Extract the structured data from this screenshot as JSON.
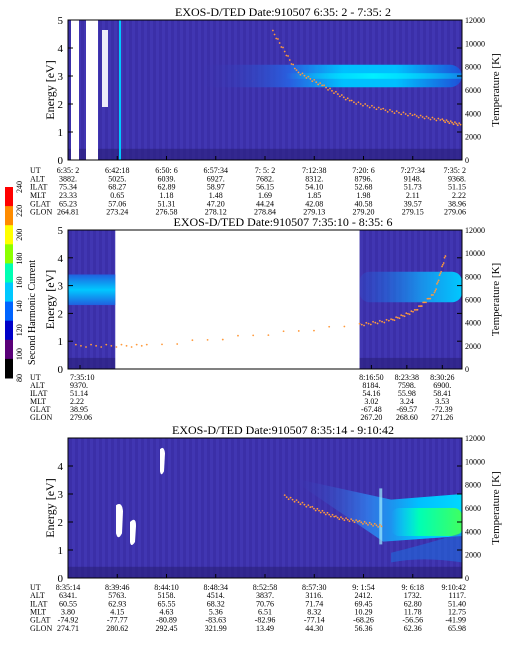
{
  "colorbar": {
    "label": "Second Harmonic Current",
    "ticks": [
      "240",
      "220",
      "200",
      "180",
      "160",
      "140",
      "120",
      "100",
      "80"
    ],
    "colors": [
      "#ff0000",
      "#ff8c00",
      "#ffff00",
      "#8cff00",
      "#00ffb4",
      "#00c8ff",
      "#0064ff",
      "#0000c8",
      "#5a0078",
      "#000000"
    ]
  },
  "chart_data": [
    {
      "type": "heatmap",
      "title": "EXOS-D/TED   Date:910507   6:35: 2 - 7:35: 2",
      "ylabel": "Energy [eV]",
      "ylabel2": "Temperature [K]",
      "ylim": [
        0,
        5
      ],
      "ylim2": [
        0,
        12000
      ],
      "yticks": [
        "0",
        "1",
        "2",
        "3",
        "4",
        "5"
      ],
      "yticks2": [
        "0",
        "2000",
        "4000",
        "6000",
        "8000",
        "10000",
        "12000"
      ],
      "row_labels": [
        "UT",
        "ALT",
        "ILAT",
        "MLT",
        "GLAT",
        "GLON"
      ],
      "columns": [
        {
          "UT": "6:35: 2",
          "ALT": "3882.",
          "ILAT": "75.34",
          "MLT": "23.33",
          "GLAT": "65.23",
          "GLON": "264.81"
        },
        {
          "UT": "6:42:18",
          "ALT": "5025.",
          "ILAT": "68.27",
          "MLT": "0.65",
          "GLAT": "57.06",
          "GLON": "273.24"
        },
        {
          "UT": "6:50: 6",
          "ALT": "6039.",
          "ILAT": "62.89",
          "MLT": "1.18",
          "GLAT": "51.31",
          "GLON": "276.58"
        },
        {
          "UT": "6:57:34",
          "ALT": "6927.",
          "ILAT": "58.97",
          "MLT": "1.48",
          "GLAT": "47.20",
          "GLON": "278.12"
        },
        {
          "UT": "7: 5: 2",
          "ALT": "7682.",
          "ILAT": "56.15",
          "MLT": "1.69",
          "GLAT": "44.24",
          "GLON": "278.84"
        },
        {
          "UT": "7:12:38",
          "ALT": "8312.",
          "ILAT": "54.10",
          "MLT": "1.85",
          "GLAT": "42.08",
          "GLON": "279.13"
        },
        {
          "UT": "7:20: 6",
          "ALT": "8796.",
          "ILAT": "52.68",
          "MLT": "1.98",
          "GLAT": "40.58",
          "GLON": "279.20"
        },
        {
          "UT": "7:27:34",
          "ALT": "9148.",
          "ILAT": "51.73",
          "MLT": "2.11",
          "GLAT": "39.57",
          "GLON": "279.15"
        },
        {
          "UT": "7:35: 2",
          "ALT": "9368.",
          "ILAT": "51.15",
          "MLT": "2.22",
          "GLAT": "38.96",
          "GLON": "279.06"
        }
      ],
      "temperature_trace": {
        "x": [
          0.52,
          0.58,
          0.65,
          0.72,
          0.8,
          0.88,
          0.95,
          1.0
        ],
        "y": [
          11000,
          7600,
          6300,
          5000,
          4300,
          3800,
          3400,
          3000
        ]
      }
    },
    {
      "type": "heatmap",
      "title": "EXOS-D/TED   Date:910507   7:35:10 - 8:35: 6",
      "ylabel": "Energy [eV]",
      "ylabel2": "Temperature [K]",
      "ylim": [
        0,
        5
      ],
      "ylim2": [
        0,
        12000
      ],
      "yticks": [
        "0",
        "1",
        "2",
        "3",
        "4",
        "5"
      ],
      "yticks2": [
        "0",
        "2000",
        "4000",
        "6000",
        "8000",
        "10000",
        "12000"
      ],
      "row_labels": [
        "UT",
        "ALT",
        "ILAT",
        "MLT",
        "GLAT",
        "GLON"
      ],
      "columns": [
        {
          "UT": "7:35:10",
          "ALT": "9370.",
          "ILAT": "51.14",
          "MLT": "2.22",
          "GLAT": "38.95",
          "GLON": "279.06"
        },
        {
          "UT": "8:16:50",
          "ALT": "8184.",
          "ILAT": "54.16",
          "MLT": "3.02",
          "GLAT": "-67.48",
          "GLON": "267.20"
        },
        {
          "UT": "8:23:38",
          "ALT": "7598.",
          "ILAT": "55.98",
          "MLT": "3.24",
          "GLAT": "-69.57",
          "GLON": "268.60"
        },
        {
          "UT": "8:30:26",
          "ALT": "6900.",
          "ILAT": "58.41",
          "MLT": "3.53",
          "GLAT": "-72.39",
          "GLON": "271.26"
        }
      ],
      "temperature_trace": {
        "x": [
          0.02,
          0.2,
          0.74,
          0.82,
          0.88,
          0.93,
          0.96
        ],
        "y": [
          2000,
          2000,
          3800,
          4200,
          5000,
          6500,
          10000
        ]
      }
    },
    {
      "type": "heatmap",
      "title": "EXOS-D/TED   Date:910507   8:35:14 - 9:10:42",
      "ylabel": "Energy [eV]",
      "ylabel2": "Temperature [K]",
      "ylim": [
        0,
        5
      ],
      "ylim2": [
        0,
        12000
      ],
      "yticks": [
        "0",
        "1",
        "2",
        "3",
        "4"
      ],
      "yticks2": [
        "0",
        "2000",
        "4000",
        "6000",
        "8000",
        "10000",
        "12000"
      ],
      "row_labels": [
        "UT",
        "ALT",
        "ILAT",
        "MLT",
        "GLAT",
        "GLON"
      ],
      "columns": [
        {
          "UT": "8:35:14",
          "ALT": "6341.",
          "ILAT": "60.55",
          "MLT": "3.80",
          "GLAT": "-74.92",
          "GLON": "274.71"
        },
        {
          "UT": "8:39:46",
          "ALT": "5763.",
          "ILAT": "62.93",
          "MLT": "4.15",
          "GLAT": "-77.77",
          "GLON": "280.62"
        },
        {
          "UT": "8:44:10",
          "ALT": "5158.",
          "ILAT": "65.55",
          "MLT": "4.63",
          "GLAT": "-80.89",
          "GLON": "292.45"
        },
        {
          "UT": "8:48:34",
          "ALT": "4514.",
          "ILAT": "68.32",
          "MLT": "5.36",
          "GLAT": "-83.63",
          "GLON": "321.99"
        },
        {
          "UT": "8:52:58",
          "ALT": "3837.",
          "ILAT": "70.76",
          "MLT": "6.51",
          "GLAT": "-82.96",
          "GLON": "13.49"
        },
        {
          "UT": "8:57:30",
          "ALT": "3116.",
          "ILAT": "71.74",
          "MLT": "8.32",
          "GLAT": "-77.14",
          "GLON": "44.30"
        },
        {
          "UT": "9: 1:54",
          "ALT": "2412.",
          "ILAT": "69.45",
          "MLT": "10.29",
          "GLAT": "-68.26",
          "GLON": "56.36"
        },
        {
          "UT": "9: 6:18",
          "ALT": "1732.",
          "ILAT": "62.80",
          "MLT": "11.78",
          "GLAT": "-56.56",
          "GLON": "62.36"
        },
        {
          "UT": "9:10:42",
          "ALT": "1117.",
          "ILAT": "51.40",
          "MLT": "12.75",
          "GLAT": "-41.99",
          "GLON": "65.98"
        }
      ],
      "temperature_trace": {
        "x": [
          0.55,
          0.62,
          0.68,
          0.74,
          0.8
        ],
        "y": [
          7000,
          6000,
          5200,
          4800,
          4400
        ]
      }
    }
  ]
}
